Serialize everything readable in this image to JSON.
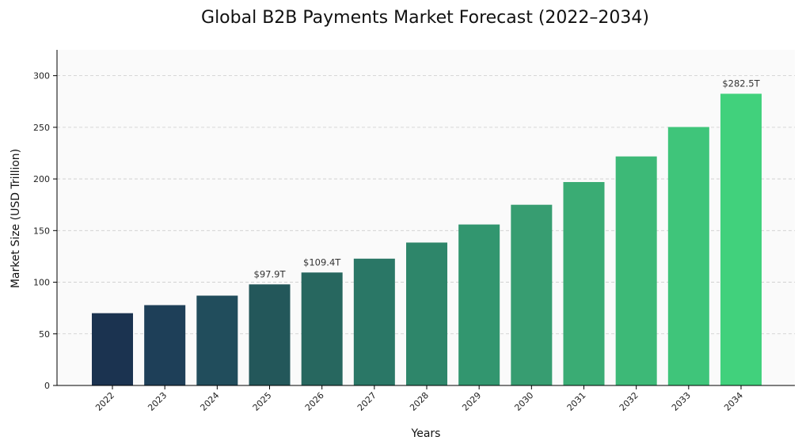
{
  "chart_data": {
    "type": "bar",
    "title": "Global B2B Payments Market Forecast (2022–2034)",
    "xlabel": "Years",
    "ylabel": "Market Size (USD Trillion)",
    "ylim": [
      0,
      325
    ],
    "yticks": [
      0,
      50,
      100,
      150,
      200,
      250,
      300
    ],
    "grid": true,
    "categories": [
      "2022",
      "2023",
      "2024",
      "2025",
      "2026",
      "2027",
      "2028",
      "2029",
      "2030",
      "2031",
      "2032",
      "2033",
      "2034"
    ],
    "values": [
      70.0,
      77.8,
      87.0,
      97.9,
      109.4,
      122.8,
      138.4,
      155.9,
      175.0,
      197.0,
      221.8,
      250.3,
      282.5
    ],
    "annotations": [
      {
        "category": "2025",
        "text": "$97.9T"
      },
      {
        "category": "2026",
        "text": "$109.4T"
      },
      {
        "category": "2034",
        "text": "$282.5T"
      }
    ],
    "colors": {
      "start": "#1b3350",
      "end": "#41d17c",
      "bars": [
        "#1b3350",
        "#1e3f58",
        "#214d5c",
        "#23575a",
        "#27675f",
        "#2a7766",
        "#2e866a",
        "#32966f",
        "#379d71",
        "#3aac74",
        "#3db977",
        "#3fc57a",
        "#41d17c"
      ],
      "plot_bg": "#fafafa",
      "grid": "#cccccc",
      "axis": "#000000"
    }
  }
}
